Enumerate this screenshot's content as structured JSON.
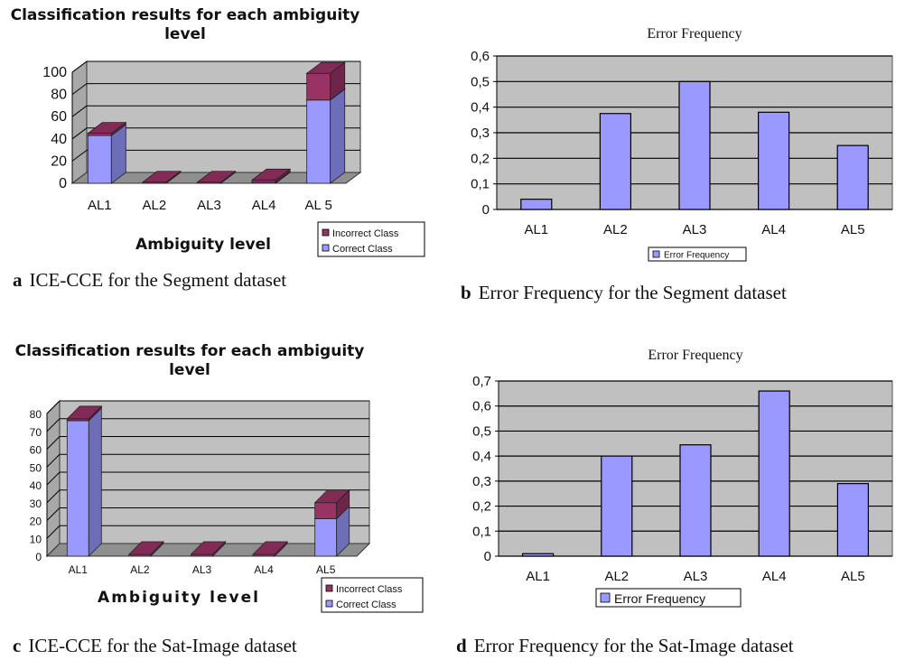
{
  "colors": {
    "correct": "#9999ff",
    "incorrect": "#993366",
    "plot_bg": "#c0c0c0",
    "error_bar": "#9999ff",
    "grid": "#000000"
  },
  "captions": [
    {
      "letter": "a",
      "text": "ICE-CCE for the Segment dataset"
    },
    {
      "letter": "b",
      "text": "Error Frequency for the Segment dataset"
    },
    {
      "letter": "c",
      "text": "ICE-CCE for the Sat-Image dataset"
    },
    {
      "letter": "d",
      "text": "Error Frequency for the Sat-Image dataset"
    }
  ],
  "chart_data": [
    {
      "type": "bar",
      "title": "Classification results for each ambiguity level",
      "xlabel": "Ambiguity level",
      "ylabel": "",
      "categories": [
        "AL1",
        "AL2",
        "AL3",
        "AL4",
        "AL 5"
      ],
      "series": [
        {
          "name": "Correct Class",
          "values": [
            43,
            0,
            0,
            1,
            75
          ]
        },
        {
          "name": "Incorrect Class",
          "values": [
            2,
            1,
            1,
            2,
            24
          ]
        }
      ],
      "stacked": true,
      "ylim": [
        0,
        100
      ],
      "yticks": [
        "0",
        "20",
        "40",
        "60",
        "80",
        "100"
      ],
      "legend": "bottom-right",
      "grid": true
    },
    {
      "type": "bar",
      "title": "Error Frequency",
      "xlabel": "",
      "ylabel": "",
      "categories": [
        "AL1",
        "AL2",
        "AL3",
        "AL4",
        "AL5"
      ],
      "series": [
        {
          "name": "Error Frequency",
          "values": [
            0.04,
            0.375,
            0.5,
            0.38,
            0.25
          ]
        }
      ],
      "ylim": [
        0,
        0.6
      ],
      "yticks": [
        "0",
        "0,1",
        "0,2",
        "0,3",
        "0,4",
        "0,5",
        "0,6"
      ],
      "legend": "bottom",
      "grid": true
    },
    {
      "type": "bar",
      "title": "Classification results for each ambiguity level",
      "xlabel": "Ambiguity level",
      "ylabel": "",
      "categories": [
        "AL1",
        "AL2",
        "AL3",
        "AL4",
        "AL5"
      ],
      "series": [
        {
          "name": "Correct Class",
          "values": [
            76,
            0,
            0,
            0,
            21
          ]
        },
        {
          "name": "Incorrect Class",
          "values": [
            1,
            1,
            1,
            1,
            9
          ]
        }
      ],
      "stacked": true,
      "ylim": [
        0,
        80
      ],
      "yticks": [
        "0",
        "10",
        "20",
        "30",
        "40",
        "50",
        "60",
        "70",
        "80"
      ],
      "legend": "bottom-right",
      "grid": true
    },
    {
      "type": "bar",
      "title": "Error Frequency",
      "xlabel": "",
      "ylabel": "",
      "categories": [
        "AL1",
        "AL2",
        "AL3",
        "AL4",
        "AL5"
      ],
      "series": [
        {
          "name": "Error Frequency",
          "values": [
            0.01,
            0.4,
            0.445,
            0.66,
            0.29
          ]
        }
      ],
      "ylim": [
        0,
        0.7
      ],
      "yticks": [
        "0",
        "0,1",
        "0,2",
        "0,3",
        "0,4",
        "0,5",
        "0,6",
        "0,7"
      ],
      "legend": "bottom",
      "grid": true
    }
  ]
}
